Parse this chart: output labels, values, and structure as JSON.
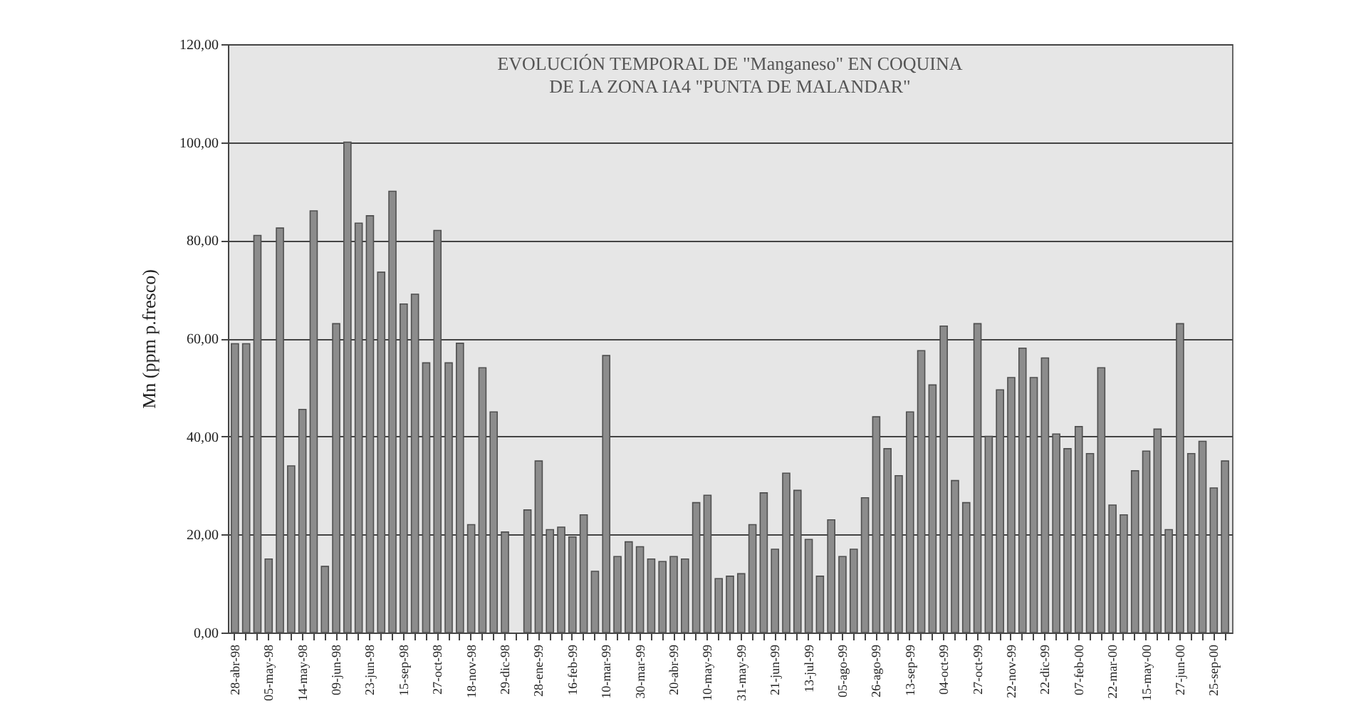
{
  "chart_data": {
    "type": "bar",
    "title": [
      "EVOLUCIÓN TEMPORAL DE \"Manganeso\" EN COQUINA",
      "DE LA ZONA IA4 \"PUNTA DE MALANDAR\""
    ],
    "ylabel": "Mn (ppm p.fresco)",
    "categories": [
      "28-abr-98",
      null,
      null,
      "05-may-98",
      null,
      null,
      "14-may-98",
      null,
      null,
      "09-jun-98",
      null,
      null,
      "23-jun-98",
      null,
      null,
      "15-sep-98",
      null,
      null,
      "27-oct-98",
      null,
      null,
      "18-nov-98",
      null,
      null,
      "29-dic-98",
      null,
      null,
      "28-ene-99",
      null,
      null,
      "16-feb-99",
      null,
      null,
      "10-mar-99",
      null,
      null,
      "30-mar-99",
      null,
      null,
      "20-abr-99",
      null,
      null,
      "10-may-99",
      null,
      null,
      "31-may-99",
      null,
      null,
      "21-jun-99",
      null,
      null,
      "13-jul-99",
      null,
      null,
      "05-ago-99",
      null,
      null,
      "26-ago-99",
      null,
      null,
      "13-sep-99",
      null,
      null,
      "04-oct-99",
      null,
      null,
      "27-oct-99",
      null,
      null,
      "22-nov-99",
      null,
      null,
      "22-dic-99",
      null,
      null,
      "07-feb-00",
      null,
      null,
      "22-mar-00",
      null,
      null,
      "15-may-00",
      null,
      null,
      "27-jun-00",
      null,
      null,
      "25-sep-00",
      null
    ],
    "values": [
      58.9,
      58.9,
      81,
      15,
      82.5,
      34,
      45.5,
      86,
      13.5,
      63,
      100,
      83.5,
      85,
      73.5,
      90,
      67,
      69,
      55,
      82,
      55,
      59,
      22,
      54,
      45,
      20.5,
      null,
      25,
      35,
      21,
      21.5,
      19.5,
      24,
      12.5,
      56.5,
      15.5,
      18.5,
      17.5,
      15,
      14.5,
      15.5,
      15,
      26.5,
      28,
      11,
      11.5,
      12,
      22,
      28.5,
      17,
      32.5,
      29,
      19,
      11.5,
      23,
      15.5,
      17,
      27.5,
      44,
      37.5,
      32,
      45,
      57.5,
      50.5,
      62.5,
      31,
      26.5,
      63,
      40,
      49.5,
      52,
      58,
      52,
      56,
      40.5,
      37.5,
      42,
      36.5,
      54,
      26,
      24,
      33,
      37,
      41.5,
      21,
      63,
      36.5,
      39,
      29.5,
      35
    ],
    "color": "#8c8c8c",
    "ylim": [
      0,
      120
    ],
    "yticks": [
      {
        "value": 0,
        "label": "0,00"
      },
      {
        "value": 20,
        "label": "20,00"
      },
      {
        "value": 40,
        "label": "40,00"
      },
      {
        "value": 60,
        "label": "60,00"
      },
      {
        "value": 80,
        "label": "80,00"
      },
      {
        "value": 100,
        "label": "100,00"
      },
      {
        "value": 120,
        "label": "120,00"
      }
    ],
    "grid": "y"
  }
}
